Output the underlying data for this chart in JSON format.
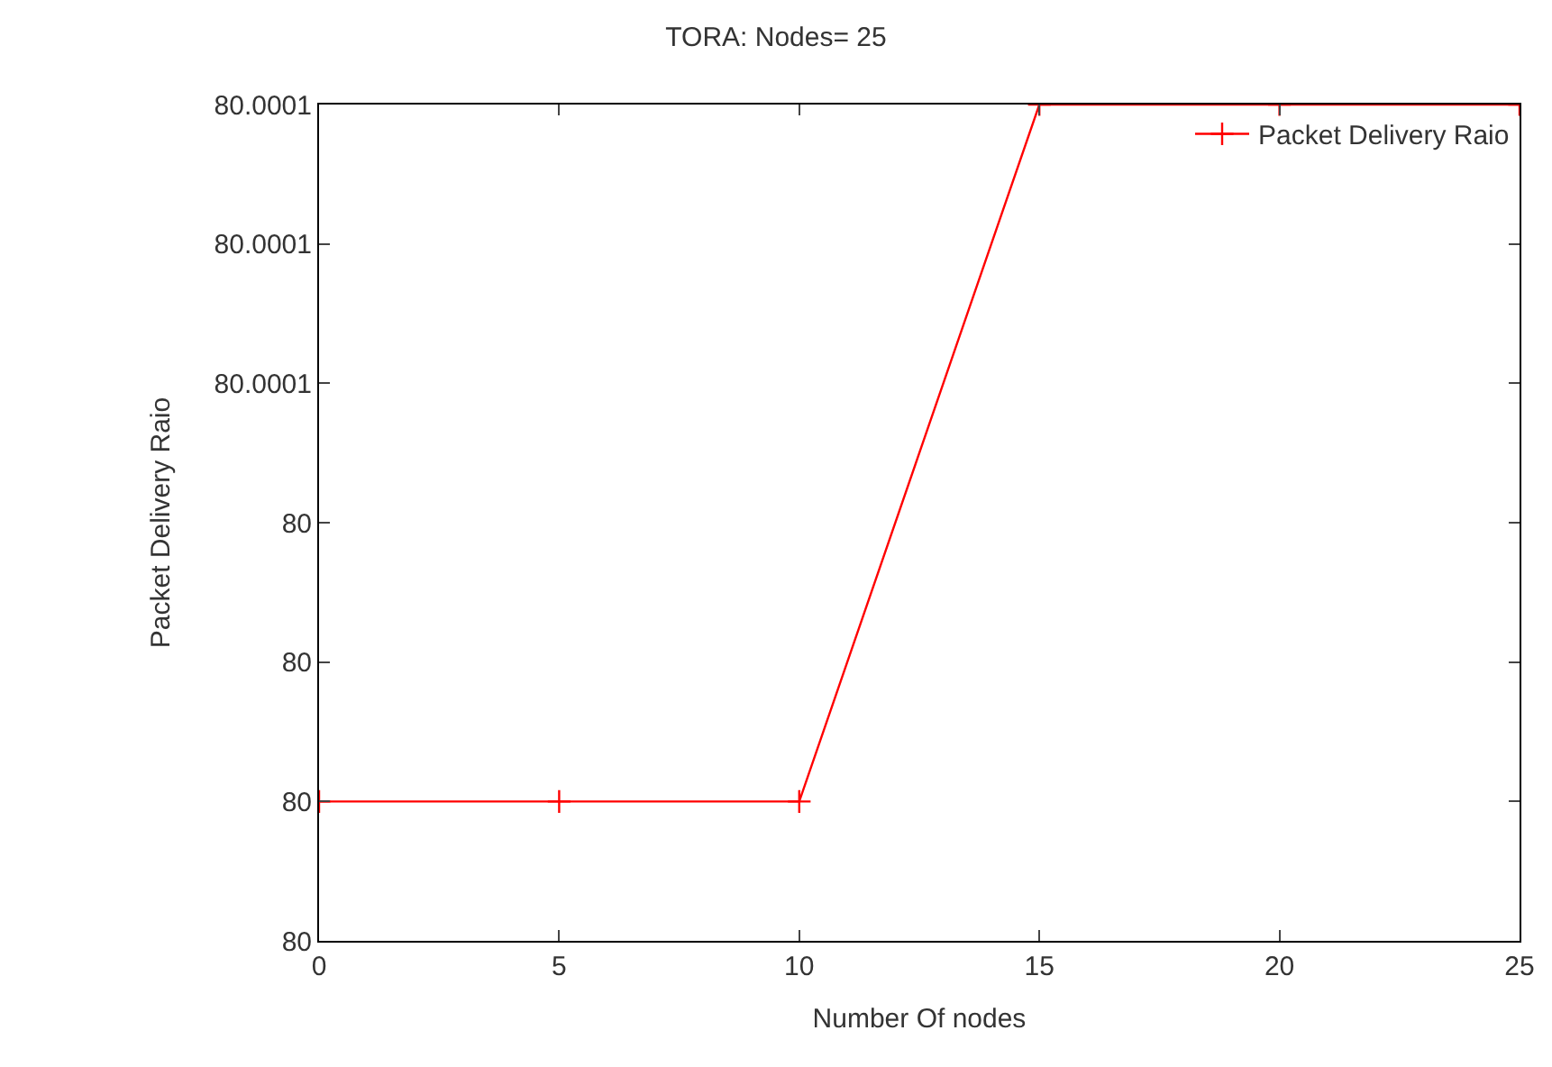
{
  "chart_data": {
    "type": "line",
    "title": "TORA: Nodes= 25",
    "xlabel": "Number Of nodes",
    "ylabel": "Packet Delivery Raio",
    "x": [
      0,
      5,
      10,
      15,
      20,
      25
    ],
    "series": [
      {
        "name": "Packet Delivery Raio",
        "color": "#ff0000",
        "values": [
          80,
          80,
          80,
          80.0001,
          80.0001,
          80.0001
        ]
      }
    ],
    "xlim": [
      0,
      25
    ],
    "xticks": [
      0,
      5,
      10,
      15,
      20,
      25
    ],
    "ylim": [
      79.99998,
      80.0001
    ],
    "yticks": [
      {
        "value": 79.99998,
        "label": "80"
      },
      {
        "value": 80,
        "label": "80"
      },
      {
        "value": 80.00002,
        "label": "80"
      },
      {
        "value": 80.00004,
        "label": "80"
      },
      {
        "value": 80.00006,
        "label": "80.0001"
      },
      {
        "value": 80.00008,
        "label": "80.0001"
      },
      {
        "value": 80.0001,
        "label": "80.0001"
      }
    ],
    "legend": "top right",
    "marker": "cross",
    "line_style": "solid"
  }
}
